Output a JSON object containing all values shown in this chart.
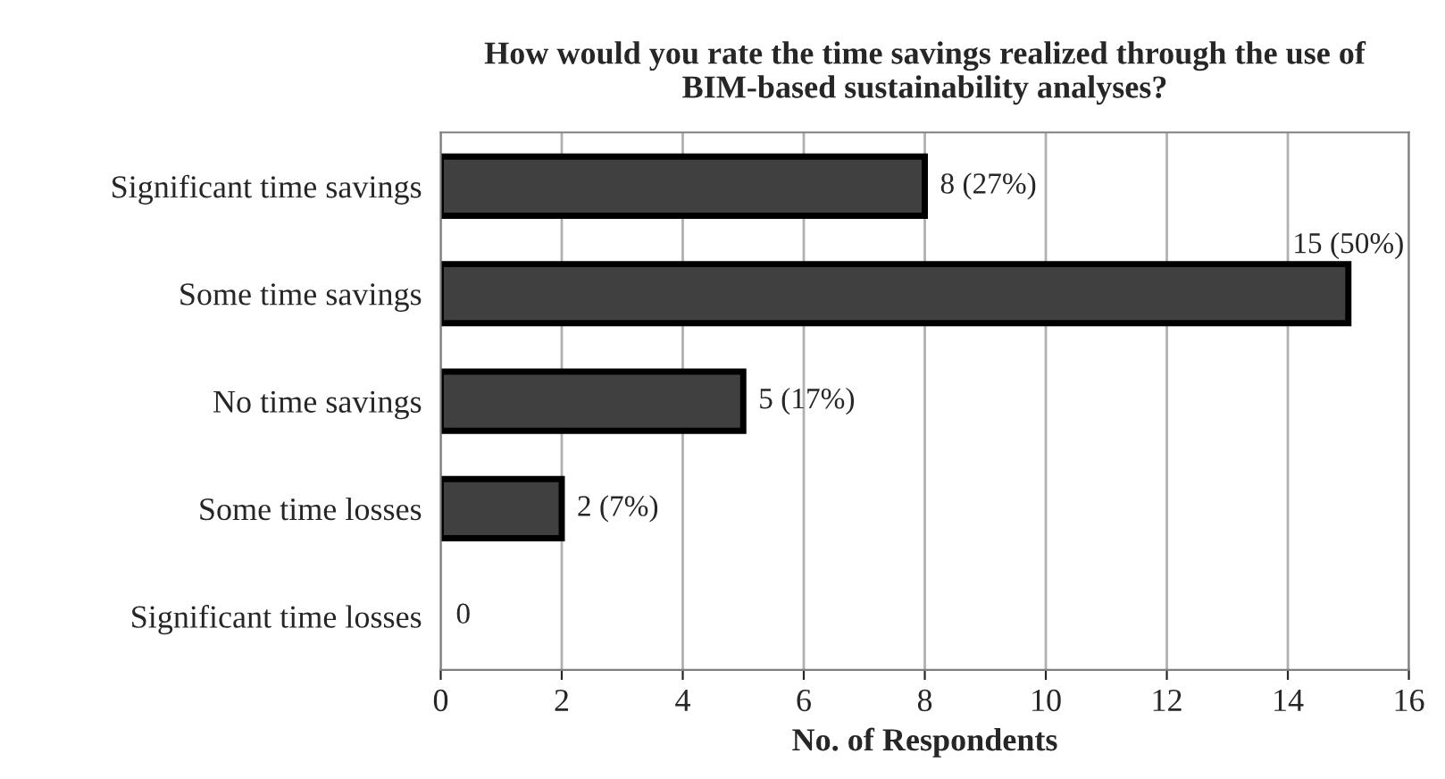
{
  "chart_data": {
    "type": "bar",
    "orientation": "horizontal",
    "title": "How would you rate the time savings realized through the use of\nBIM-based sustainability analyses?",
    "xlabel": "No. of Respondents",
    "categories": [
      "Significant time savings",
      "Some time savings",
      "No time savings",
      "Some time losses",
      "Significant time losses"
    ],
    "values": [
      8,
      15,
      5,
      2,
      0
    ],
    "value_labels": [
      "8 (27%)",
      "15 (50%)",
      "5 (17%)",
      "2 (7%)",
      "0"
    ],
    "color": "#404040",
    "xlim": [
      0,
      16
    ],
    "xticks": [
      0,
      2,
      4,
      6,
      8,
      10,
      12,
      14,
      16
    ],
    "grid": "x",
    "legend": false
  }
}
